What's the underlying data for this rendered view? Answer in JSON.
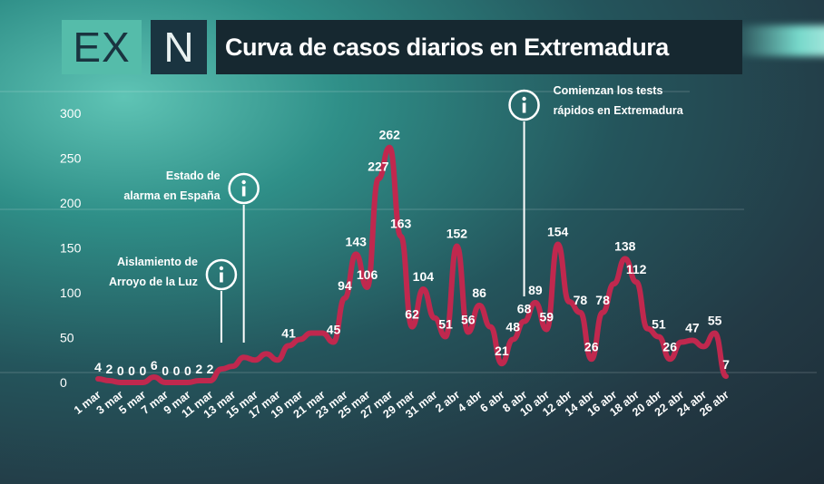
{
  "brand": {
    "logo_left": "EX",
    "logo_right": "N"
  },
  "colors": {
    "line": "#c0284e",
    "accent": "#55bcaa",
    "title_bg": "#162830"
  },
  "chart_data": {
    "type": "line",
    "title": "Curva de casos diarios en Extremadura",
    "xlabel": "",
    "ylabel": "",
    "ylim": [
      0,
      300
    ],
    "yticks": [
      0,
      50,
      100,
      150,
      200,
      250,
      300
    ],
    "grid": false,
    "x": [
      "1 mar",
      "2 mar",
      "3 mar",
      "4 mar",
      "5 mar",
      "6 mar",
      "7 mar",
      "8 mar",
      "9 mar",
      "10 mar",
      "11 mar",
      "12 mar",
      "13 mar",
      "14 mar",
      "15 mar",
      "16 mar",
      "17 mar",
      "18 mar",
      "19 mar",
      "20 mar",
      "21 mar",
      "22 mar",
      "23 mar",
      "24 mar",
      "25 mar",
      "26 mar",
      "27 mar",
      "28 mar",
      "29 mar",
      "30 mar",
      "31 mar",
      "1 abr",
      "2 abr",
      "3 abr",
      "4 abr",
      "5 abr",
      "6 abr",
      "7 abr",
      "8 abr",
      "9 abr",
      "10 abr",
      "11 abr",
      "12 abr",
      "13 abr",
      "14 abr",
      "15 abr",
      "16 abr",
      "17 abr",
      "18 abr",
      "19 abr",
      "20 abr",
      "21 abr",
      "22 abr",
      "23 abr",
      "24 abr",
      "25 abr",
      "26 abr"
    ],
    "x_tick_labels": [
      "1 mar",
      "3 mar",
      "5 mar",
      "7 mar",
      "9 mar",
      "11 mar",
      "13 mar",
      "15 mar",
      "17 mar",
      "19 mar",
      "21 mar",
      "23 mar",
      "25 mar",
      "27 mar",
      "29 mar",
      "31 mar",
      "2 abr",
      "4 abr",
      "6 abr",
      "8 abr",
      "10 abr",
      "12 abr",
      "14 abr",
      "16 abr",
      "18 abr",
      "20 abr",
      "22 abr",
      "24 abr",
      "26 abr"
    ],
    "values": [
      4,
      2,
      0,
      0,
      0,
      6,
      0,
      0,
      0,
      2,
      2,
      15,
      18,
      28,
      25,
      32,
      25,
      41,
      48,
      55,
      55,
      45,
      94,
      143,
      106,
      227,
      262,
      163,
      62,
      104,
      72,
      51,
      152,
      56,
      86,
      62,
      21,
      48,
      68,
      89,
      59,
      154,
      90,
      78,
      26,
      78,
      110,
      138,
      112,
      60,
      51,
      26,
      45,
      47,
      40,
      55,
      7
    ],
    "labeled_points": [
      {
        "x": "1 mar",
        "label": "4"
      },
      {
        "x": "2 mar",
        "label": "2"
      },
      {
        "x": "3 mar",
        "label": "0"
      },
      {
        "x": "4 mar",
        "label": "0"
      },
      {
        "x": "5 mar",
        "label": "0"
      },
      {
        "x": "6 mar",
        "label": "6"
      },
      {
        "x": "7 mar",
        "label": "0"
      },
      {
        "x": "8 mar",
        "label": "0"
      },
      {
        "x": "9 mar",
        "label": "0"
      },
      {
        "x": "10 mar",
        "label": "2"
      },
      {
        "x": "11 mar",
        "label": "2"
      },
      {
        "x": "18 mar",
        "label": "41"
      },
      {
        "x": "22 mar",
        "label": "45"
      },
      {
        "x": "23 mar",
        "label": "94"
      },
      {
        "x": "24 mar",
        "label": "143"
      },
      {
        "x": "25 mar",
        "label": "106"
      },
      {
        "x": "26 mar",
        "label": "227"
      },
      {
        "x": "27 mar",
        "label": "262"
      },
      {
        "x": "28 mar",
        "label": "163"
      },
      {
        "x": "29 mar",
        "label": "62"
      },
      {
        "x": "30 mar",
        "label": "104"
      },
      {
        "x": "1 abr",
        "label": "51"
      },
      {
        "x": "2 abr",
        "label": "152"
      },
      {
        "x": "3 abr",
        "label": "56"
      },
      {
        "x": "4 abr",
        "label": "86"
      },
      {
        "x": "6 abr",
        "label": "21"
      },
      {
        "x": "7 abr",
        "label": "48"
      },
      {
        "x": "8 abr",
        "label": "68"
      },
      {
        "x": "9 abr",
        "label": "89"
      },
      {
        "x": "10 abr",
        "label": "59"
      },
      {
        "x": "11 abr",
        "label": "154"
      },
      {
        "x": "13 abr",
        "label": "78"
      },
      {
        "x": "14 abr",
        "label": "26"
      },
      {
        "x": "15 abr",
        "label": "78"
      },
      {
        "x": "17 abr",
        "label": "138"
      },
      {
        "x": "18 abr",
        "label": "112"
      },
      {
        "x": "20 abr",
        "label": "51"
      },
      {
        "x": "21 abr",
        "label": "26"
      },
      {
        "x": "23 abr",
        "label": "47"
      },
      {
        "x": "25 abr",
        "label": "55"
      },
      {
        "x": "26 abr",
        "label": "7"
      }
    ],
    "annotations": [
      {
        "x": "12 mar",
        "lines": [
          "Aislamiento de",
          "Arroyo de la Luz"
        ],
        "icon": "info-icon"
      },
      {
        "x": "14 mar",
        "lines": [
          "Estado de",
          "alarma en España"
        ],
        "icon": "info-icon"
      },
      {
        "x": "8 abr",
        "lines": [
          "Comienzan los tests",
          "rápidos en Extremadura"
        ],
        "icon": "info-icon"
      }
    ]
  }
}
